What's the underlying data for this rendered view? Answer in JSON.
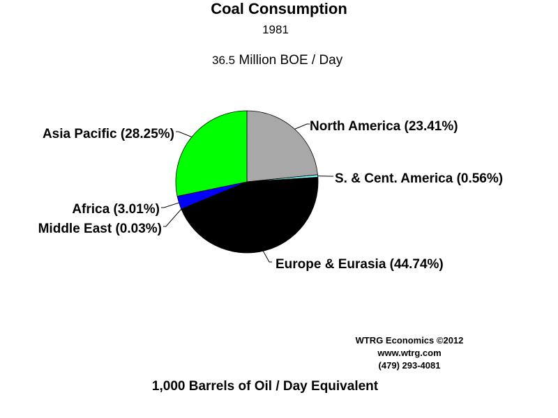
{
  "title": "Coal Consumption",
  "subtitle": "1981",
  "total": {
    "value": "36.5",
    "unit": "Million BOE / Day"
  },
  "chart_data": {
    "type": "pie",
    "title": "Coal Consumption",
    "subtitle": "1981",
    "slices": [
      {
        "label": "North America (23.41%)",
        "value": 23.41,
        "color": "#a8a8a8"
      },
      {
        "label": "S. & Cent. America (0.56%)",
        "value": 0.56,
        "color": "#80ffff"
      },
      {
        "label": "Europe & Eurasia (44.74%)",
        "value": 44.74,
        "color": "#000000"
      },
      {
        "label": "Middle East (0.03%)",
        "value": 0.03,
        "color": "#ff0000"
      },
      {
        "label": "Africa (3.01%)",
        "value": 3.01,
        "color": "#0000ff"
      },
      {
        "label": "Asia Pacific (28.25%)",
        "value": 28.25,
        "color": "#00ff00"
      }
    ]
  },
  "credits": {
    "line1": "WTRG Economics  ©2012",
    "line2": "www.wtrg.com",
    "line3": "(479) 293-4081"
  },
  "footer": "1,000 Barrels of Oil / Day Equivalent"
}
